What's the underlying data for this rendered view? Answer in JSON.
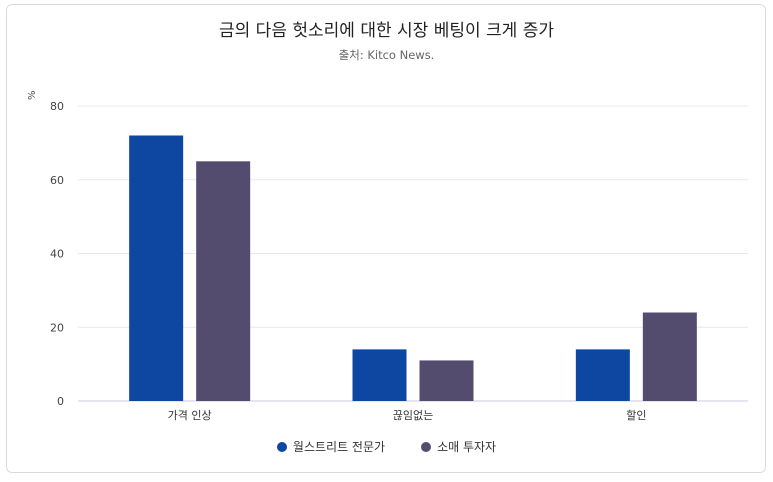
{
  "chart_data": {
    "type": "bar",
    "title": "금의 다음 헛소리에 대한 시장 베팅이 크게 증가",
    "subtitle": "출처: Kitco News.",
    "ylabel": "%",
    "xlabel": "",
    "categories": [
      "가격 인상",
      "끊임없는",
      "할인"
    ],
    "series": [
      {
        "name": "월스트리트 전문가",
        "color": "#0d47a1",
        "values": [
          72,
          14,
          14
        ]
      },
      {
        "name": "소매 투자자",
        "color": "#534c6e",
        "values": [
          65,
          11,
          24
        ]
      }
    ],
    "ylim": [
      0,
      80
    ],
    "yticks": [
      0,
      20,
      40,
      60,
      80
    ],
    "grid": true,
    "legend_position": "bottom"
  }
}
